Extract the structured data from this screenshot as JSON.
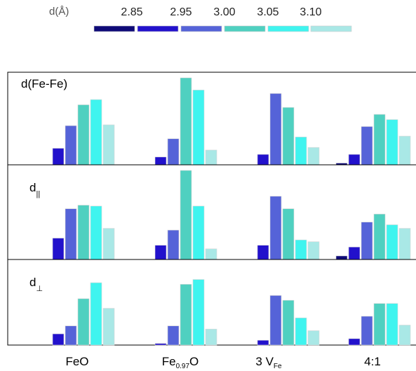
{
  "legend": {
    "title": "d(Å)",
    "ticks": [
      "2.85",
      "2.95",
      "3.00",
      "3.05",
      "3.10"
    ],
    "colors": [
      "#0e0a78",
      "#2211cc",
      "#5563d8",
      "#4fd0c0",
      "#3ff4ef",
      "#a9e8e6"
    ]
  },
  "chart_data": {
    "type": "bar",
    "categories": [
      {
        "base": "FeO",
        "sub": "",
        "tail": ""
      },
      {
        "base": "Fe",
        "sub": "0.97",
        "tail": "O"
      },
      {
        "base": "3 V",
        "sub": "Fe",
        "tail": ""
      },
      {
        "base": "4:1",
        "sub": "",
        "tail": ""
      }
    ],
    "bins": [
      "<2.85",
      "2.85-2.95",
      "2.95-3.00",
      "3.00-3.05",
      "3.05-3.10",
      ">3.10"
    ],
    "panels": [
      {
        "label": {
          "base": "d(Fe-Fe)",
          "sub": ""
        },
        "ymax": 100,
        "values": [
          [
            0,
            19,
            45,
            69,
            75,
            46
          ],
          [
            0,
            9,
            30,
            100,
            86,
            17
          ],
          [
            0,
            12,
            82,
            66,
            32,
            20
          ],
          [
            2,
            12,
            44,
            58,
            52,
            33
          ]
        ]
      },
      {
        "label": {
          "base": "d",
          "sub": "||"
        },
        "ymax": 100,
        "values": [
          [
            0,
            24,
            57,
            61,
            60,
            35
          ],
          [
            0,
            16,
            33,
            100,
            60,
            12
          ],
          [
            0,
            16,
            71,
            57,
            22,
            20
          ],
          [
            4,
            14,
            42,
            51,
            39,
            35
          ]
        ]
      },
      {
        "label": {
          "base": "d",
          "sub": "⊥"
        },
        "ymax": 100,
        "values": [
          [
            0,
            14,
            24,
            58,
            78,
            46
          ],
          [
            0,
            2,
            24,
            76,
            82,
            20
          ],
          [
            0,
            6,
            62,
            56,
            34,
            18
          ],
          [
            0,
            8,
            36,
            52,
            52,
            25
          ]
        ]
      }
    ]
  }
}
